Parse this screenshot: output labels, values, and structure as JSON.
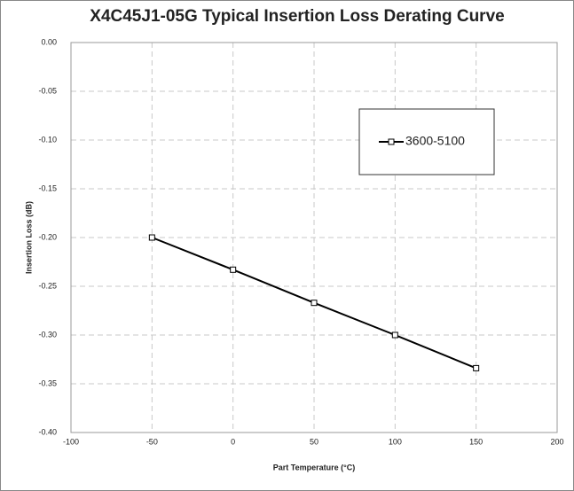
{
  "chart_data": {
    "type": "line",
    "title": "X4C45J1-05G Typical Insertion Loss Derating Curve",
    "x_label": "Part Temperature (°C)",
    "y_label": "Insertion Loss (dB)",
    "x": [
      -50,
      0,
      50,
      100,
      150
    ],
    "series": [
      {
        "name": "3600-5100",
        "color": "#000000",
        "values": [
          -0.2,
          -0.233,
          -0.267,
          -0.3,
          -0.334
        ]
      }
    ],
    "xlim": [
      -100,
      200
    ],
    "xticks": [
      -100,
      -50,
      0,
      50,
      100,
      150,
      200
    ],
    "ylim": [
      -0.4,
      0
    ],
    "yticks": [
      {
        "value": 0,
        "label": "0.00"
      },
      -0.05,
      {
        "value": -0.1,
        "label": "-0.10"
      },
      -0.15,
      {
        "value": -0.2,
        "label": "-0.20"
      },
      -0.25,
      {
        "value": -0.3,
        "label": "-0.30"
      },
      -0.35,
      {
        "value": -0.4,
        "label": "-0.40"
      }
    ],
    "grid": true,
    "legend": "upper right"
  }
}
